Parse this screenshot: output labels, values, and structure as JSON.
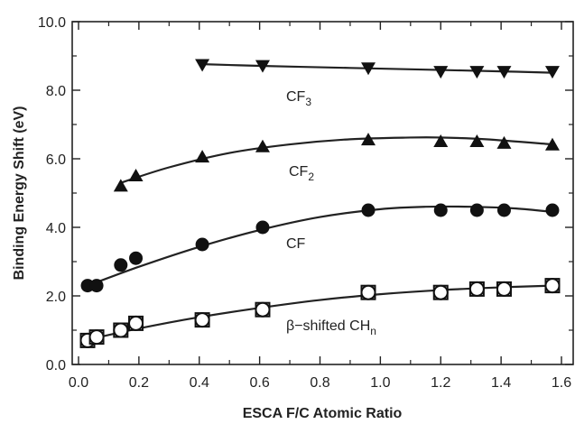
{
  "chart_data": {
    "type": "scatter",
    "title": "",
    "xlabel": "ESCA F/C Atomic Ratio",
    "ylabel": "Binding Energy Shift (eV)",
    "xlim": [
      0.0,
      1.6
    ],
    "ylim": [
      0.0,
      10.0
    ],
    "x_ticks": [
      "0.0",
      "0.2",
      "0.4",
      "0.6",
      "0.8",
      "1.0",
      "1.2",
      "1.4",
      "1.6"
    ],
    "y_ticks": [
      "0.0",
      "2.0",
      "4.0",
      "6.0",
      "8.0",
      "10.0"
    ],
    "grid": false,
    "legend": "none (labels placed next to curves)",
    "series": [
      {
        "name": "CF3",
        "label_main": "CF",
        "label_sub": "3",
        "marker": "triangle-down",
        "x": [
          0.41,
          0.61,
          0.96,
          1.2,
          1.32,
          1.41,
          1.57
        ],
        "y": [
          8.75,
          8.72,
          8.65,
          8.55,
          8.55,
          8.55,
          8.55
        ],
        "fit_x": [
          0.41,
          0.6,
          0.8,
          1.0,
          1.2,
          1.4,
          1.57
        ],
        "fit_y": [
          8.76,
          8.71,
          8.67,
          8.63,
          8.59,
          8.55,
          8.51
        ]
      },
      {
        "name": "CF2",
        "label_main": "CF",
        "label_sub": "2",
        "marker": "triangle-up",
        "x": [
          0.14,
          0.19,
          0.41,
          0.61,
          0.96,
          1.2,
          1.32,
          1.41,
          1.57
        ],
        "y": [
          5.2,
          5.5,
          6.05,
          6.35,
          6.55,
          6.5,
          6.5,
          6.45,
          6.4
        ],
        "fit_x": [
          0.14,
          0.3,
          0.5,
          0.7,
          0.9,
          1.1,
          1.2,
          1.35,
          1.57
        ],
        "fit_y": [
          5.3,
          5.75,
          6.17,
          6.42,
          6.57,
          6.62,
          6.62,
          6.57,
          6.42
        ]
      },
      {
        "name": "CF",
        "label_main": "CF",
        "label_sub": "",
        "marker": "filled-circle",
        "x": [
          0.03,
          0.06,
          0.14,
          0.19,
          0.41,
          0.61,
          0.96,
          1.2,
          1.32,
          1.41,
          1.57
        ],
        "y": [
          2.3,
          2.3,
          2.9,
          3.1,
          3.5,
          4.0,
          4.5,
          4.5,
          4.5,
          4.5,
          4.5
        ],
        "fit_x": [
          0.03,
          0.2,
          0.4,
          0.6,
          0.8,
          1.0,
          1.15,
          1.3,
          1.45,
          1.57
        ],
        "fit_y": [
          2.3,
          2.85,
          3.43,
          3.92,
          4.3,
          4.53,
          4.6,
          4.6,
          4.55,
          4.45
        ]
      },
      {
        "name": "β-shifted CHn",
        "label_main": "β−shifted CH",
        "label_sub": "n",
        "marker": "open-circle-in-square",
        "x": [
          0.03,
          0.06,
          0.14,
          0.19,
          0.41,
          0.61,
          0.96,
          1.2,
          1.32,
          1.41,
          1.57
        ],
        "y": [
          0.7,
          0.8,
          1.0,
          1.2,
          1.3,
          1.6,
          2.1,
          2.1,
          2.2,
          2.2,
          2.3
        ],
        "fit_x": [
          0.03,
          0.2,
          0.4,
          0.6,
          0.8,
          1.0,
          1.2,
          1.4,
          1.57
        ],
        "fit_y": [
          0.72,
          1.05,
          1.38,
          1.65,
          1.88,
          2.05,
          2.17,
          2.25,
          2.3
        ]
      }
    ]
  }
}
